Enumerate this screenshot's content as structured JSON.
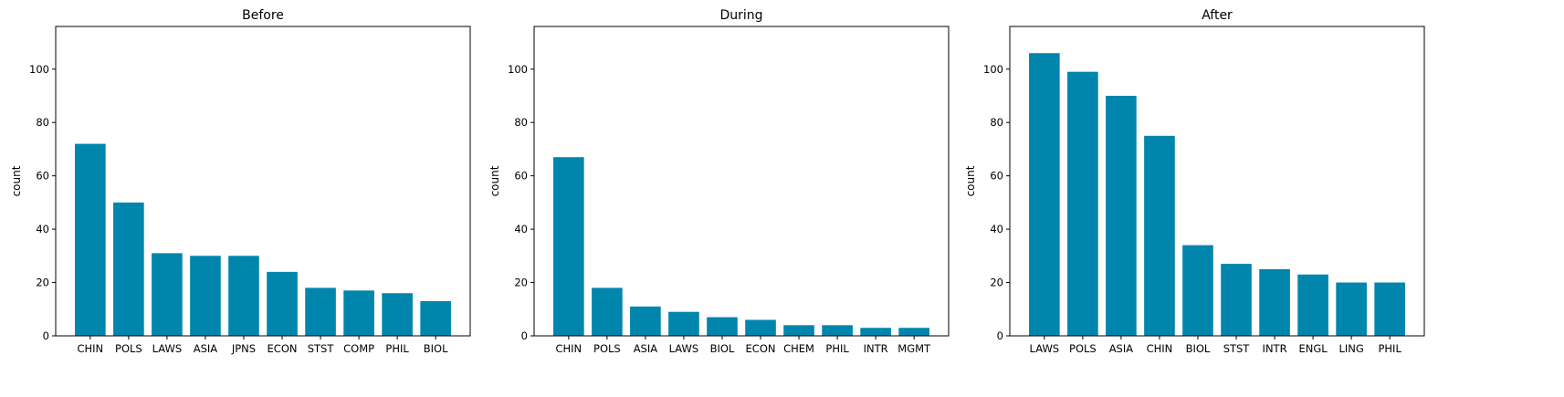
{
  "bar_color": "#0086ad",
  "chart_data": [
    {
      "type": "bar",
      "title": "Before",
      "xlabel": "",
      "ylabel": "count",
      "ylim": [
        0,
        116
      ],
      "yticks": [
        0,
        20,
        40,
        60,
        80,
        100
      ],
      "categories": [
        "CHIN",
        "POLS",
        "LAWS",
        "ASIA",
        "JPNS",
        "ECON",
        "STST",
        "COMP",
        "PHIL",
        "BIOL"
      ],
      "values": [
        72,
        50,
        31,
        30,
        30,
        24,
        18,
        17,
        16,
        13
      ]
    },
    {
      "type": "bar",
      "title": "During",
      "xlabel": "",
      "ylabel": "count",
      "ylim": [
        0,
        116
      ],
      "yticks": [
        0,
        20,
        40,
        60,
        80,
        100
      ],
      "categories": [
        "CHIN",
        "POLS",
        "ASIA",
        "LAWS",
        "BIOL",
        "ECON",
        "CHEM",
        "PHIL",
        "INTR",
        "MGMT"
      ],
      "values": [
        67,
        18,
        11,
        9,
        7,
        6,
        4,
        4,
        3,
        3
      ]
    },
    {
      "type": "bar",
      "title": "After",
      "xlabel": "",
      "ylabel": "count",
      "ylim": [
        0,
        116
      ],
      "yticks": [
        0,
        20,
        40,
        60,
        80,
        100
      ],
      "categories": [
        "LAWS",
        "POLS",
        "ASIA",
        "CHIN",
        "BIOL",
        "STST",
        "INTR",
        "ENGL",
        "LING",
        "PHIL"
      ],
      "values": [
        106,
        99,
        90,
        75,
        34,
        27,
        25,
        23,
        20,
        20
      ]
    }
  ]
}
